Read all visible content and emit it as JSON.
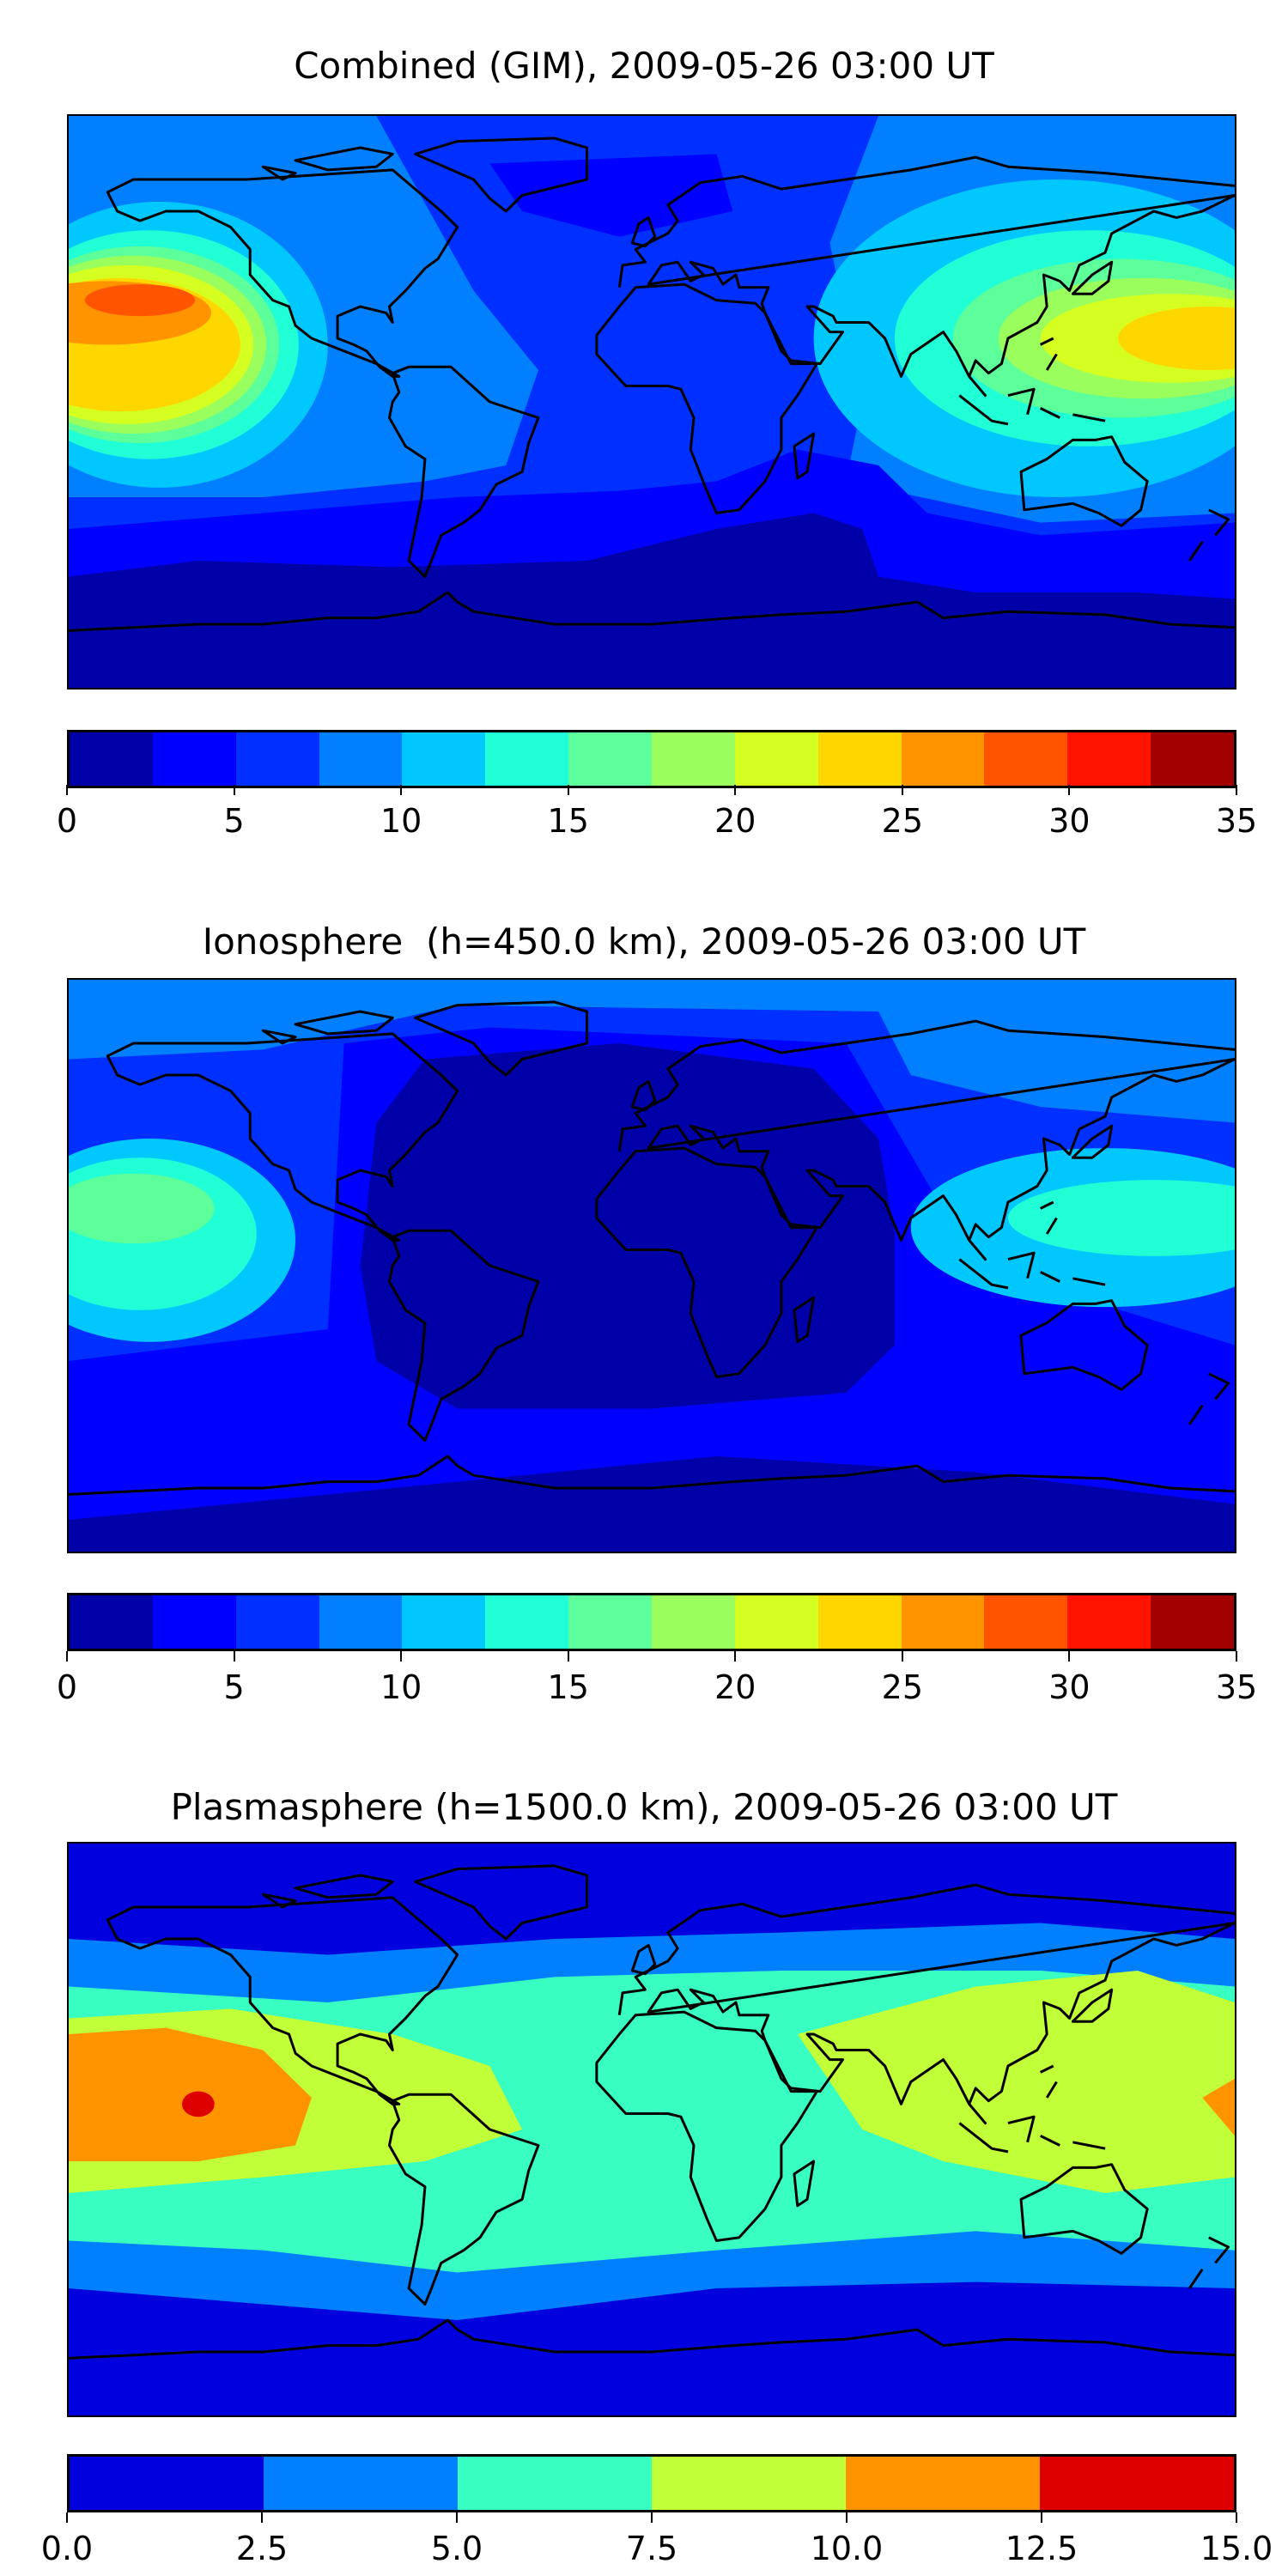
{
  "panels": [
    {
      "title": "Combined (GIM), 2009-05-26 03:00 UT",
      "colorbar": {
        "levels": [
          0,
          2.5,
          5,
          7.5,
          10,
          12.5,
          15,
          17.5,
          20,
          22.5,
          25,
          27.5,
          30,
          32.5,
          35
        ],
        "colors": [
          "#0000a8",
          "#0000ff",
          "#0030ff",
          "#0080ff",
          "#00c8ff",
          "#20ffd5",
          "#5dff9a",
          "#9aff5d",
          "#d5ff20",
          "#ffd700",
          "#ff9400",
          "#ff5500",
          "#ff1300",
          "#a30000"
        ],
        "ticks": [
          "0",
          "5",
          "10",
          "15",
          "20",
          "25",
          "30",
          "35"
        ],
        "range": [
          0,
          35
        ]
      }
    },
    {
      "title": "Ionosphere  (h=450.0 km), 2009-05-26 03:00 UT",
      "colorbar": {
        "levels": [
          0,
          2.5,
          5,
          7.5,
          10,
          12.5,
          15,
          17.5,
          20,
          22.5,
          25,
          27.5,
          30,
          32.5,
          35
        ],
        "colors": [
          "#0000a8",
          "#0000ff",
          "#0030ff",
          "#0080ff",
          "#00c8ff",
          "#20ffd5",
          "#5dff9a",
          "#9aff5d",
          "#d5ff20",
          "#ffd700",
          "#ff9400",
          "#ff5500",
          "#ff1300",
          "#a30000"
        ],
        "ticks": [
          "0",
          "5",
          "10",
          "15",
          "20",
          "25",
          "30",
          "35"
        ],
        "range": [
          0,
          35
        ]
      }
    },
    {
      "title": "Plasmasphere (h=1500.0 km), 2009-05-26 03:00 UT",
      "colorbar": {
        "levels": [
          0,
          2.5,
          5,
          7.5,
          10,
          12.5,
          15
        ],
        "colors": [
          "#0000de",
          "#0080ff",
          "#38ffc1",
          "#c1ff38",
          "#ff9400",
          "#de0000"
        ],
        "ticks": [
          "0.0",
          "2.5",
          "5.0",
          "7.5",
          "10.0",
          "12.5",
          "15.0"
        ],
        "range": [
          0,
          15
        ]
      }
    }
  ]
}
